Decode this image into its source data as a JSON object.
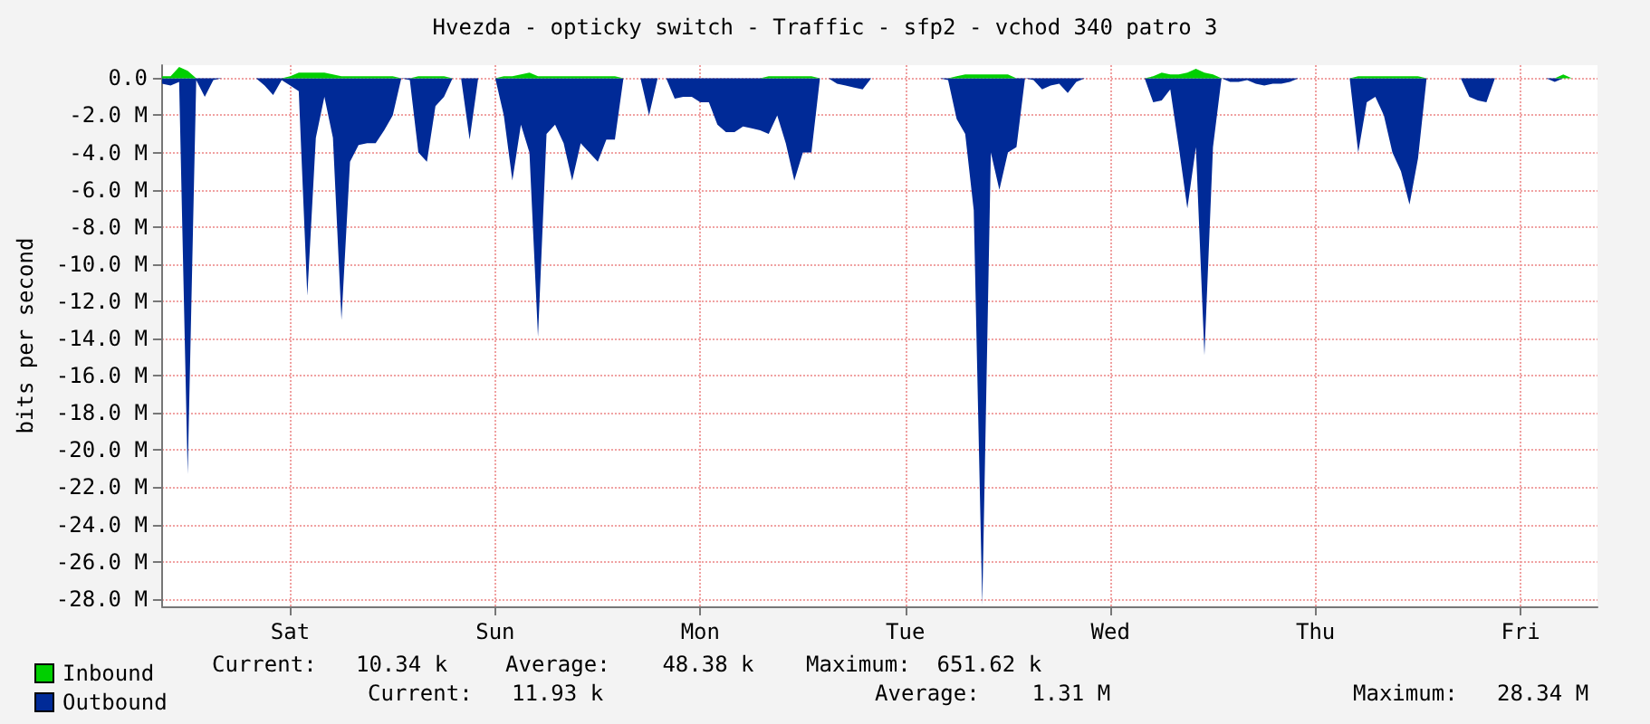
{
  "chart_data": {
    "type": "area",
    "title": "Hvezda - opticky switch - Traffic - sfp2 - vchod 340 patro 3",
    "ylabel": "bits per second",
    "categories": [
      null,
      null,
      null,
      null,
      null,
      null,
      null,
      null,
      null,
      null,
      null,
      null,
      null,
      null,
      null,
      "Sat",
      null,
      null,
      null,
      null,
      null,
      null,
      null,
      null,
      null,
      null,
      null,
      null,
      null,
      null,
      null,
      null,
      null,
      null,
      null,
      null,
      null,
      null,
      null,
      "Sun",
      null,
      null,
      null,
      null,
      null,
      null,
      null,
      null,
      null,
      null,
      null,
      null,
      null,
      null,
      null,
      null,
      null,
      null,
      null,
      null,
      null,
      null,
      null,
      "Mon",
      null,
      null,
      null,
      null,
      null,
      null,
      null,
      null,
      null,
      null,
      null,
      null,
      null,
      null,
      null,
      null,
      null,
      null,
      null,
      null,
      null,
      null,
      null,
      "Tue",
      null,
      null,
      null,
      null,
      null,
      null,
      null,
      null,
      null,
      null,
      null,
      null,
      null,
      null,
      null,
      null,
      null,
      null,
      null,
      null,
      null,
      null,
      null,
      "Wed",
      null,
      null,
      null,
      null,
      null,
      null,
      null,
      null,
      null,
      null,
      null,
      null,
      null,
      null,
      null,
      null,
      null,
      null,
      null,
      null,
      null,
      null,
      null,
      "Thu",
      null,
      null,
      null,
      null,
      null,
      null,
      null,
      null,
      null,
      null,
      null,
      null,
      null,
      null,
      null,
      null,
      null,
      null,
      null,
      null,
      null,
      null,
      null,
      "Fri",
      null,
      null,
      null,
      null,
      null,
      null,
      null,
      null,
      null
    ],
    "ylim": [
      -28.4,
      0.7
    ],
    "yticks": [
      {
        "value": 0,
        "label": "0.0"
      },
      {
        "value": -2,
        "label": "-2.0 M"
      },
      {
        "value": -4,
        "label": "-4.0 M"
      },
      {
        "value": -6,
        "label": "-6.0 M"
      },
      {
        "value": -8,
        "label": "-8.0 M"
      },
      {
        "value": -10,
        "label": "-10.0 M"
      },
      {
        "value": -12,
        "label": "-12.0 M"
      },
      {
        "value": -14,
        "label": "-14.0 M"
      },
      {
        "value": -16,
        "label": "-16.0 M"
      },
      {
        "value": -18,
        "label": "-18.0 M"
      },
      {
        "value": -20,
        "label": "-20.0 M"
      },
      {
        "value": -22,
        "label": "-22.0 M"
      },
      {
        "value": -24,
        "label": "-24.0 M"
      },
      {
        "value": -26,
        "label": "-26.0 M"
      },
      {
        "value": -28,
        "label": "-28.0 M"
      }
    ],
    "grid": true,
    "legend": "bottom left",
    "series": [
      {
        "name": "Outbound",
        "color": "#002a97",
        "values": [
          -0.3,
          -0.4,
          -0.2,
          -21.3,
          -0.1,
          -1.0,
          -0.1,
          0,
          0,
          0,
          0,
          0,
          -0.4,
          -0.9,
          -0.1,
          -0.4,
          -0.7,
          -11.7,
          -3.2,
          -1.0,
          -3.2,
          -13.0,
          -4.5,
          -3.6,
          -3.5,
          -3.5,
          -2.8,
          -2.0,
          0,
          -0.1,
          -4.0,
          -4.5,
          -1.5,
          -1.0,
          0,
          0,
          -3.3,
          0,
          0,
          0,
          -2.0,
          -5.5,
          -2.5,
          -4.0,
          -13.9,
          -3.0,
          -2.5,
          -3.5,
          -5.5,
          -3.5,
          -4.0,
          -4.5,
          -3.3,
          -3.3,
          0,
          0,
          0,
          -2.0,
          0,
          0,
          -1.1,
          -1.0,
          -1.0,
          -1.3,
          -1.3,
          -2.5,
          -2.9,
          -2.9,
          -2.6,
          -2.7,
          -2.8,
          -3.0,
          -2.0,
          -3.5,
          -5.5,
          -4.0,
          -4.0,
          0,
          0,
          -0.3,
          -0.4,
          -0.5,
          -0.6,
          0,
          0,
          0,
          0,
          0,
          0,
          0,
          0,
          0,
          -0.1,
          -2.2,
          -3.0,
          -7.1,
          -28.3,
          -4.0,
          -6.0,
          -4.0,
          -3.7,
          0,
          -0.1,
          -0.6,
          -0.4,
          -0.3,
          -0.8,
          -0.2,
          0,
          0,
          0,
          0,
          0,
          0,
          0,
          0,
          -1.3,
          -1.2,
          -0.6,
          -3.7,
          -7.0,
          -3.7,
          -14.9,
          -3.7,
          0,
          -0.2,
          -0.2,
          -0.1,
          -0.3,
          -0.4,
          -0.3,
          -0.3,
          -0.2,
          0,
          0,
          0,
          0,
          0,
          0,
          0,
          -4.0,
          -1.3,
          -1.0,
          -2.0,
          -4.0,
          -5.0,
          -6.8,
          -4.3,
          0,
          0,
          0,
          0,
          0,
          -1.0,
          -1.2,
          -1.3,
          0,
          0,
          0,
          0,
          0,
          0,
          0,
          -0.2,
          0,
          0,
          0,
          0,
          0
        ]
      },
      {
        "name": "Inbound",
        "color": "#00cf00",
        "values": [
          0.1,
          0.1,
          0.6,
          0.4,
          0,
          0,
          0,
          0,
          0,
          0,
          0,
          0,
          0,
          0,
          0,
          0.1,
          0.3,
          0.3,
          0.3,
          0.3,
          0.2,
          0.1,
          0.1,
          0.1,
          0.1,
          0.1,
          0.1,
          0.1,
          0,
          0,
          0.1,
          0.1,
          0.1,
          0.1,
          0,
          0,
          0,
          0,
          0,
          0,
          0.1,
          0.1,
          0.2,
          0.3,
          0.1,
          0.1,
          0.1,
          0.1,
          0.1,
          0.1,
          0.1,
          0.1,
          0.1,
          0.1,
          0,
          0,
          0,
          0,
          0,
          0,
          0,
          0,
          0,
          0,
          0,
          0,
          0,
          0,
          0,
          0,
          0,
          0.1,
          0.1,
          0.1,
          0.1,
          0.1,
          0.1,
          0,
          0,
          0,
          0,
          0,
          0,
          0,
          0,
          0,
          0,
          0,
          0,
          0,
          0,
          0,
          0,
          0.1,
          0.2,
          0.2,
          0.2,
          0.2,
          0.2,
          0.2,
          0,
          0,
          0,
          0,
          0,
          0,
          0,
          0,
          0,
          0,
          0,
          0,
          0,
          0,
          0,
          0,
          0.1,
          0.3,
          0.2,
          0.2,
          0.3,
          0.5,
          0.3,
          0.2,
          0,
          0,
          0,
          0,
          0,
          0,
          0,
          0,
          0,
          0,
          0,
          0,
          0,
          0,
          0,
          0,
          0.1,
          0.1,
          0.1,
          0.1,
          0.1,
          0.1,
          0.1,
          0.1,
          0,
          0,
          0,
          0,
          0,
          0,
          0,
          0,
          0,
          0,
          0,
          0,
          0,
          0,
          0,
          0,
          0.2,
          0,
          0,
          0,
          0
        ]
      }
    ],
    "annotations": [
      "Current:   11.93 k",
      "Average:    1.31 M",
      "Maximum:   28.34 M",
      "Current:   10.34 k",
      "Average:    48.38 k",
      "Maximum:  651.62 k"
    ]
  }
}
